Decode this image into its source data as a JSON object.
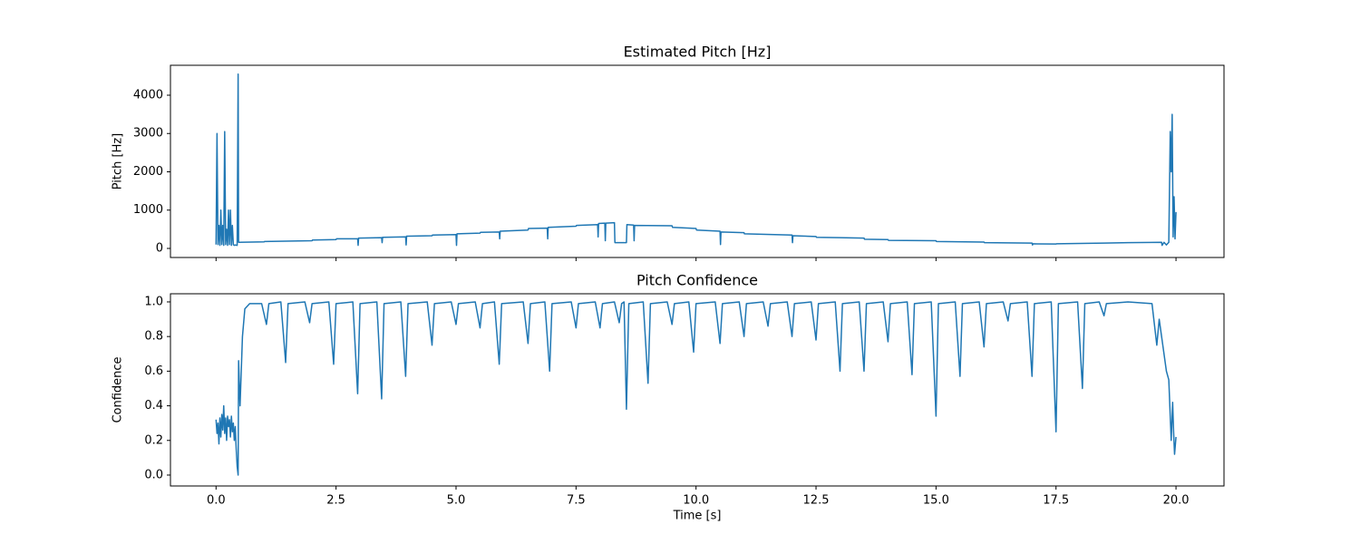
{
  "chart_data": [
    {
      "type": "line",
      "title": "Estimated Pitch [Hz]",
      "ylabel": "Pitch [Hz]",
      "color": "#1f77b4",
      "xlim": [
        -0.95,
        21.0
      ],
      "ylim": [
        -237,
        4781
      ],
      "xticks": [
        0,
        2.5,
        5,
        7.5,
        10,
        12.5,
        15,
        17.5,
        20
      ],
      "show_xtick_labels": false,
      "yticks": [
        0,
        1000,
        2000,
        3000,
        4000
      ],
      "x": [
        0,
        0.02,
        0.04,
        0.06,
        0.08,
        0.1,
        0.12,
        0.14,
        0.16,
        0.18,
        0.2,
        0.22,
        0.24,
        0.26,
        0.28,
        0.3,
        0.32,
        0.34,
        0.36,
        0.38,
        0.4,
        0.44,
        0.46,
        0.47,
        1.0,
        1.01,
        2.0,
        2.01,
        2.5,
        2.51,
        2.95,
        2.96,
        2.97,
        3.45,
        3.46,
        3.47,
        3.95,
        3.96,
        3.97,
        4.5,
        4.51,
        5.0,
        5.01,
        5.02,
        5.5,
        5.51,
        5.9,
        5.91,
        5.92,
        6.5,
        6.51,
        6.9,
        6.91,
        6.92,
        7.5,
        7.51,
        7.95,
        7.96,
        7.97,
        8.1,
        8.11,
        8.12,
        8.3,
        8.31,
        8.55,
        8.56,
        8.7,
        8.71,
        8.72,
        9.5,
        9.51,
        10.0,
        10.01,
        10.5,
        10.51,
        10.52,
        11.0,
        11.01,
        12.0,
        12.01,
        12.02,
        12.5,
        12.51,
        13.0,
        13.5,
        13.51,
        14.0,
        14.01,
        15.0,
        15.01,
        16.0,
        16.01,
        17.0,
        17.01,
        17.02,
        17.5,
        17.51,
        18.0,
        18.5,
        19.0,
        19.7,
        19.71,
        19.75,
        19.8,
        19.85,
        19.88,
        19.9,
        19.92,
        19.94,
        19.96,
        19.98,
        20.0
      ],
      "values": [
        100,
        3000,
        100,
        600,
        80,
        1000,
        100,
        600,
        80,
        3050,
        100,
        500,
        80,
        1000,
        100,
        1000,
        80,
        600,
        100,
        80,
        90,
        80,
        4550,
        160,
        170,
        180,
        200,
        220,
        230,
        250,
        250,
        80,
        270,
        280,
        150,
        290,
        300,
        90,
        320,
        330,
        350,
        360,
        80,
        380,
        400,
        420,
        430,
        250,
        450,
        480,
        520,
        530,
        250,
        550,
        580,
        600,
        620,
        300,
        650,
        660,
        200,
        660,
        670,
        150,
        150,
        620,
        610,
        200,
        600,
        590,
        550,
        520,
        480,
        450,
        100,
        430,
        410,
        380,
        350,
        150,
        330,
        310,
        290,
        280,
        270,
        240,
        230,
        210,
        200,
        180,
        165,
        150,
        140,
        90,
        120,
        115,
        120,
        130,
        140,
        150,
        160,
        80,
        160,
        90,
        160,
        3050,
        2000,
        3500,
        300,
        1350,
        250,
        950
      ]
    },
    {
      "type": "line",
      "title": "Pitch Confidence",
      "ylabel": "Confidence",
      "xlabel": "Time [s]",
      "color": "#1f77b4",
      "xlim": [
        -0.95,
        21.0
      ],
      "ylim": [
        -0.063,
        1.047
      ],
      "xticks": [
        {
          "value": 0,
          "label": "0.0"
        },
        {
          "value": 2.5,
          "label": "2.5"
        },
        {
          "value": 5,
          "label": "5.0"
        },
        {
          "value": 7.5,
          "label": "7.5"
        },
        {
          "value": 10,
          "label": "10.0"
        },
        {
          "value": 12.5,
          "label": "12.5"
        },
        {
          "value": 15,
          "label": "15.0"
        },
        {
          "value": 17.5,
          "label": "17.5"
        },
        {
          "value": 20,
          "label": "20.0"
        }
      ],
      "show_xtick_labels": true,
      "yticks": [
        {
          "value": 0,
          "label": "0.0"
        },
        0.2,
        0.4,
        0.6,
        0.8,
        {
          "value": 1,
          "label": "1.0"
        }
      ],
      "x": [
        0,
        0.02,
        0.04,
        0.06,
        0.08,
        0.1,
        0.12,
        0.14,
        0.16,
        0.18,
        0.2,
        0.22,
        0.24,
        0.26,
        0.28,
        0.3,
        0.32,
        0.34,
        0.36,
        0.38,
        0.4,
        0.42,
        0.44,
        0.46,
        0.47,
        0.5,
        0.55,
        0.6,
        0.7,
        0.95,
        1.05,
        1.1,
        1.35,
        1.45,
        1.5,
        1.85,
        1.95,
        2.0,
        2.35,
        2.45,
        2.5,
        2.85,
        2.95,
        3.0,
        3.35,
        3.45,
        3.5,
        3.85,
        3.95,
        4.0,
        4.4,
        4.5,
        4.55,
        4.9,
        5.0,
        5.05,
        5.4,
        5.5,
        5.55,
        5.8,
        5.9,
        5.95,
        6.4,
        6.5,
        6.55,
        6.85,
        6.95,
        7.0,
        7.4,
        7.5,
        7.55,
        7.9,
        8.0,
        8.05,
        8.3,
        8.4,
        8.45,
        8.5,
        8.55,
        8.6,
        8.9,
        9.0,
        9.05,
        9.4,
        9.5,
        9.55,
        9.85,
        9.95,
        10.0,
        10.4,
        10.5,
        10.55,
        10.9,
        11.0,
        11.05,
        11.4,
        11.5,
        11.55,
        11.9,
        12.0,
        12.05,
        12.4,
        12.5,
        12.55,
        12.9,
        13.0,
        13.05,
        13.4,
        13.5,
        13.55,
        13.9,
        14.0,
        14.05,
        14.4,
        14.5,
        14.55,
        14.9,
        15.0,
        15.05,
        15.4,
        15.5,
        15.55,
        15.9,
        16.0,
        16.05,
        16.4,
        16.5,
        16.55,
        16.9,
        17.0,
        17.05,
        17.4,
        17.5,
        17.55,
        17.95,
        18.05,
        18.1,
        18.4,
        18.5,
        18.55,
        19.0,
        19.5,
        19.6,
        19.65,
        19.8,
        19.85,
        19.9,
        19.93,
        19.95,
        19.97,
        20.0
      ],
      "values": [
        0.32,
        0.24,
        0.3,
        0.18,
        0.33,
        0.22,
        0.35,
        0.26,
        0.4,
        0.24,
        0.33,
        0.2,
        0.34,
        0.28,
        0.32,
        0.22,
        0.34,
        0.25,
        0.3,
        0.2,
        0.28,
        0.15,
        0.05,
        0.0,
        0.66,
        0.4,
        0.8,
        0.96,
        0.99,
        0.99,
        0.87,
        0.99,
        1.0,
        0.65,
        0.99,
        1.0,
        0.88,
        0.99,
        1.0,
        0.64,
        0.99,
        1.0,
        0.47,
        0.99,
        1.0,
        0.44,
        0.99,
        1.0,
        0.57,
        0.99,
        1.0,
        0.75,
        0.99,
        1.0,
        0.87,
        0.99,
        1.0,
        0.85,
        0.99,
        1.0,
        0.64,
        0.99,
        1.0,
        0.76,
        0.99,
        1.0,
        0.6,
        0.99,
        1.0,
        0.85,
        0.99,
        1.0,
        0.85,
        0.99,
        1.0,
        0.88,
        0.99,
        1.0,
        0.38,
        0.99,
        1.0,
        0.53,
        0.99,
        1.0,
        0.87,
        0.99,
        1.0,
        0.71,
        0.99,
        1.0,
        0.76,
        0.99,
        1.0,
        0.8,
        0.99,
        1.0,
        0.86,
        0.99,
        1.0,
        0.8,
        0.99,
        1.0,
        0.78,
        0.99,
        1.0,
        0.6,
        0.99,
        1.0,
        0.6,
        0.99,
        1.0,
        0.77,
        0.99,
        1.0,
        0.58,
        0.99,
        1.0,
        0.34,
        0.99,
        1.0,
        0.57,
        0.99,
        1.0,
        0.74,
        0.99,
        1.0,
        0.89,
        0.99,
        1.0,
        0.57,
        0.99,
        1.0,
        0.25,
        0.99,
        1.0,
        0.5,
        0.99,
        1.0,
        0.92,
        0.99,
        1.0,
        0.99,
        0.75,
        0.9,
        0.6,
        0.55,
        0.2,
        0.42,
        0.25,
        0.12,
        0.22
      ]
    }
  ]
}
